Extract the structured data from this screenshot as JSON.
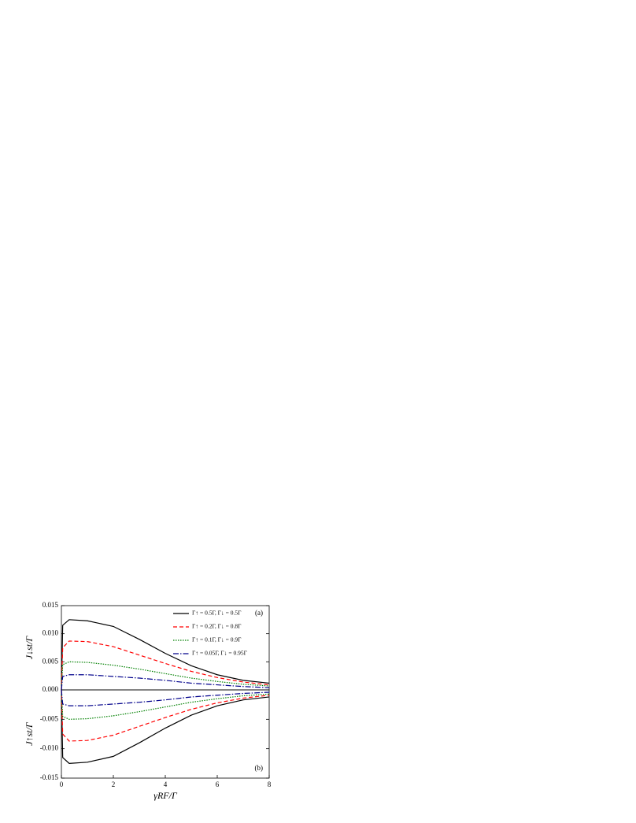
{
  "chart_data": [
    {
      "type": "line",
      "panel_label": "(a)",
      "y_label": "J↓st/Γ",
      "x": [
        0,
        0.05,
        0.3,
        1,
        2,
        3,
        4,
        5,
        6,
        7,
        8
      ],
      "xlim": [
        0,
        8
      ],
      "ylim": [
        0,
        0.015
      ],
      "yticks": [
        {
          "value": 0,
          "label": "0.000"
        },
        0.005,
        {
          "value": 0.01,
          "label": "0.010"
        },
        0.015
      ],
      "legend": "upper right",
      "series": [
        {
          "name": "Γ↑ = 0.5Γ, Γ↓ = 0.5Γ",
          "color": "#000000",
          "dash": "",
          "values": [
            0,
            0.0115,
            0.0125,
            0.0123,
            0.0113,
            0.009,
            0.0065,
            0.0043,
            0.0027,
            0.0017,
            0.0012
          ]
        },
        {
          "name": "Γ↑ = 0.2Γ, Γ↓ = 0.8Γ",
          "color": "#ff0000",
          "dash": "5 3",
          "values": [
            0,
            0.0075,
            0.0087,
            0.0086,
            0.0077,
            0.0062,
            0.0047,
            0.0033,
            0.0022,
            0.0014,
            0.0009
          ]
        },
        {
          "name": "Γ↑ = 0.1Γ, Γ↓ = 0.9Γ",
          "color": "#008000",
          "dash": "1.5 1.5",
          "values": [
            0,
            0.0045,
            0.005,
            0.0049,
            0.0044,
            0.0037,
            0.0029,
            0.0021,
            0.0015,
            0.001,
            0.0007
          ]
        },
        {
          "name": "Γ↑ = 0.05Γ, Γ↓ = 0.95Γ",
          "color": "#00008b",
          "dash": "7 2 1.5 2",
          "values": [
            0,
            0.0024,
            0.0027,
            0.0027,
            0.0024,
            0.0021,
            0.0017,
            0.0012,
            0.0009,
            0.0006,
            0.0004
          ]
        }
      ]
    },
    {
      "type": "line",
      "panel_label": "(b)",
      "y_label": "J↑st/Γ",
      "x_label": "γRF/Γ",
      "x": [
        0,
        0.05,
        0.3,
        1,
        2,
        3,
        4,
        5,
        6,
        7,
        8
      ],
      "xlim": [
        0,
        8
      ],
      "xticks": [
        0,
        2,
        4,
        6,
        8
      ],
      "ylim": [
        -0.015,
        0
      ],
      "yticks": [
        -0.015,
        {
          "value": -0.01,
          "label": "-0.010"
        },
        -0.005
      ],
      "series": [
        {
          "color": "#000000",
          "dash": "",
          "values": [
            0,
            -0.0115,
            -0.0125,
            -0.0123,
            -0.0113,
            -0.009,
            -0.0065,
            -0.0043,
            -0.0027,
            -0.0017,
            -0.0012
          ]
        },
        {
          "color": "#ff0000",
          "dash": "5 3",
          "values": [
            0,
            -0.0075,
            -0.0087,
            -0.0086,
            -0.0077,
            -0.0062,
            -0.0047,
            -0.0033,
            -0.0022,
            -0.0014,
            -0.0009
          ]
        },
        {
          "color": "#008000",
          "dash": "1.5 1.5",
          "values": [
            0,
            -0.0045,
            -0.005,
            -0.0049,
            -0.0044,
            -0.0037,
            -0.0029,
            -0.0021,
            -0.0015,
            -0.001,
            -0.0007
          ]
        },
        {
          "color": "#00008b",
          "dash": "7 2 1.5 2",
          "values": [
            0,
            -0.0024,
            -0.0027,
            -0.0027,
            -0.0024,
            -0.0021,
            -0.0017,
            -0.0012,
            -0.0009,
            -0.0006,
            -0.0004
          ]
        }
      ]
    }
  ]
}
